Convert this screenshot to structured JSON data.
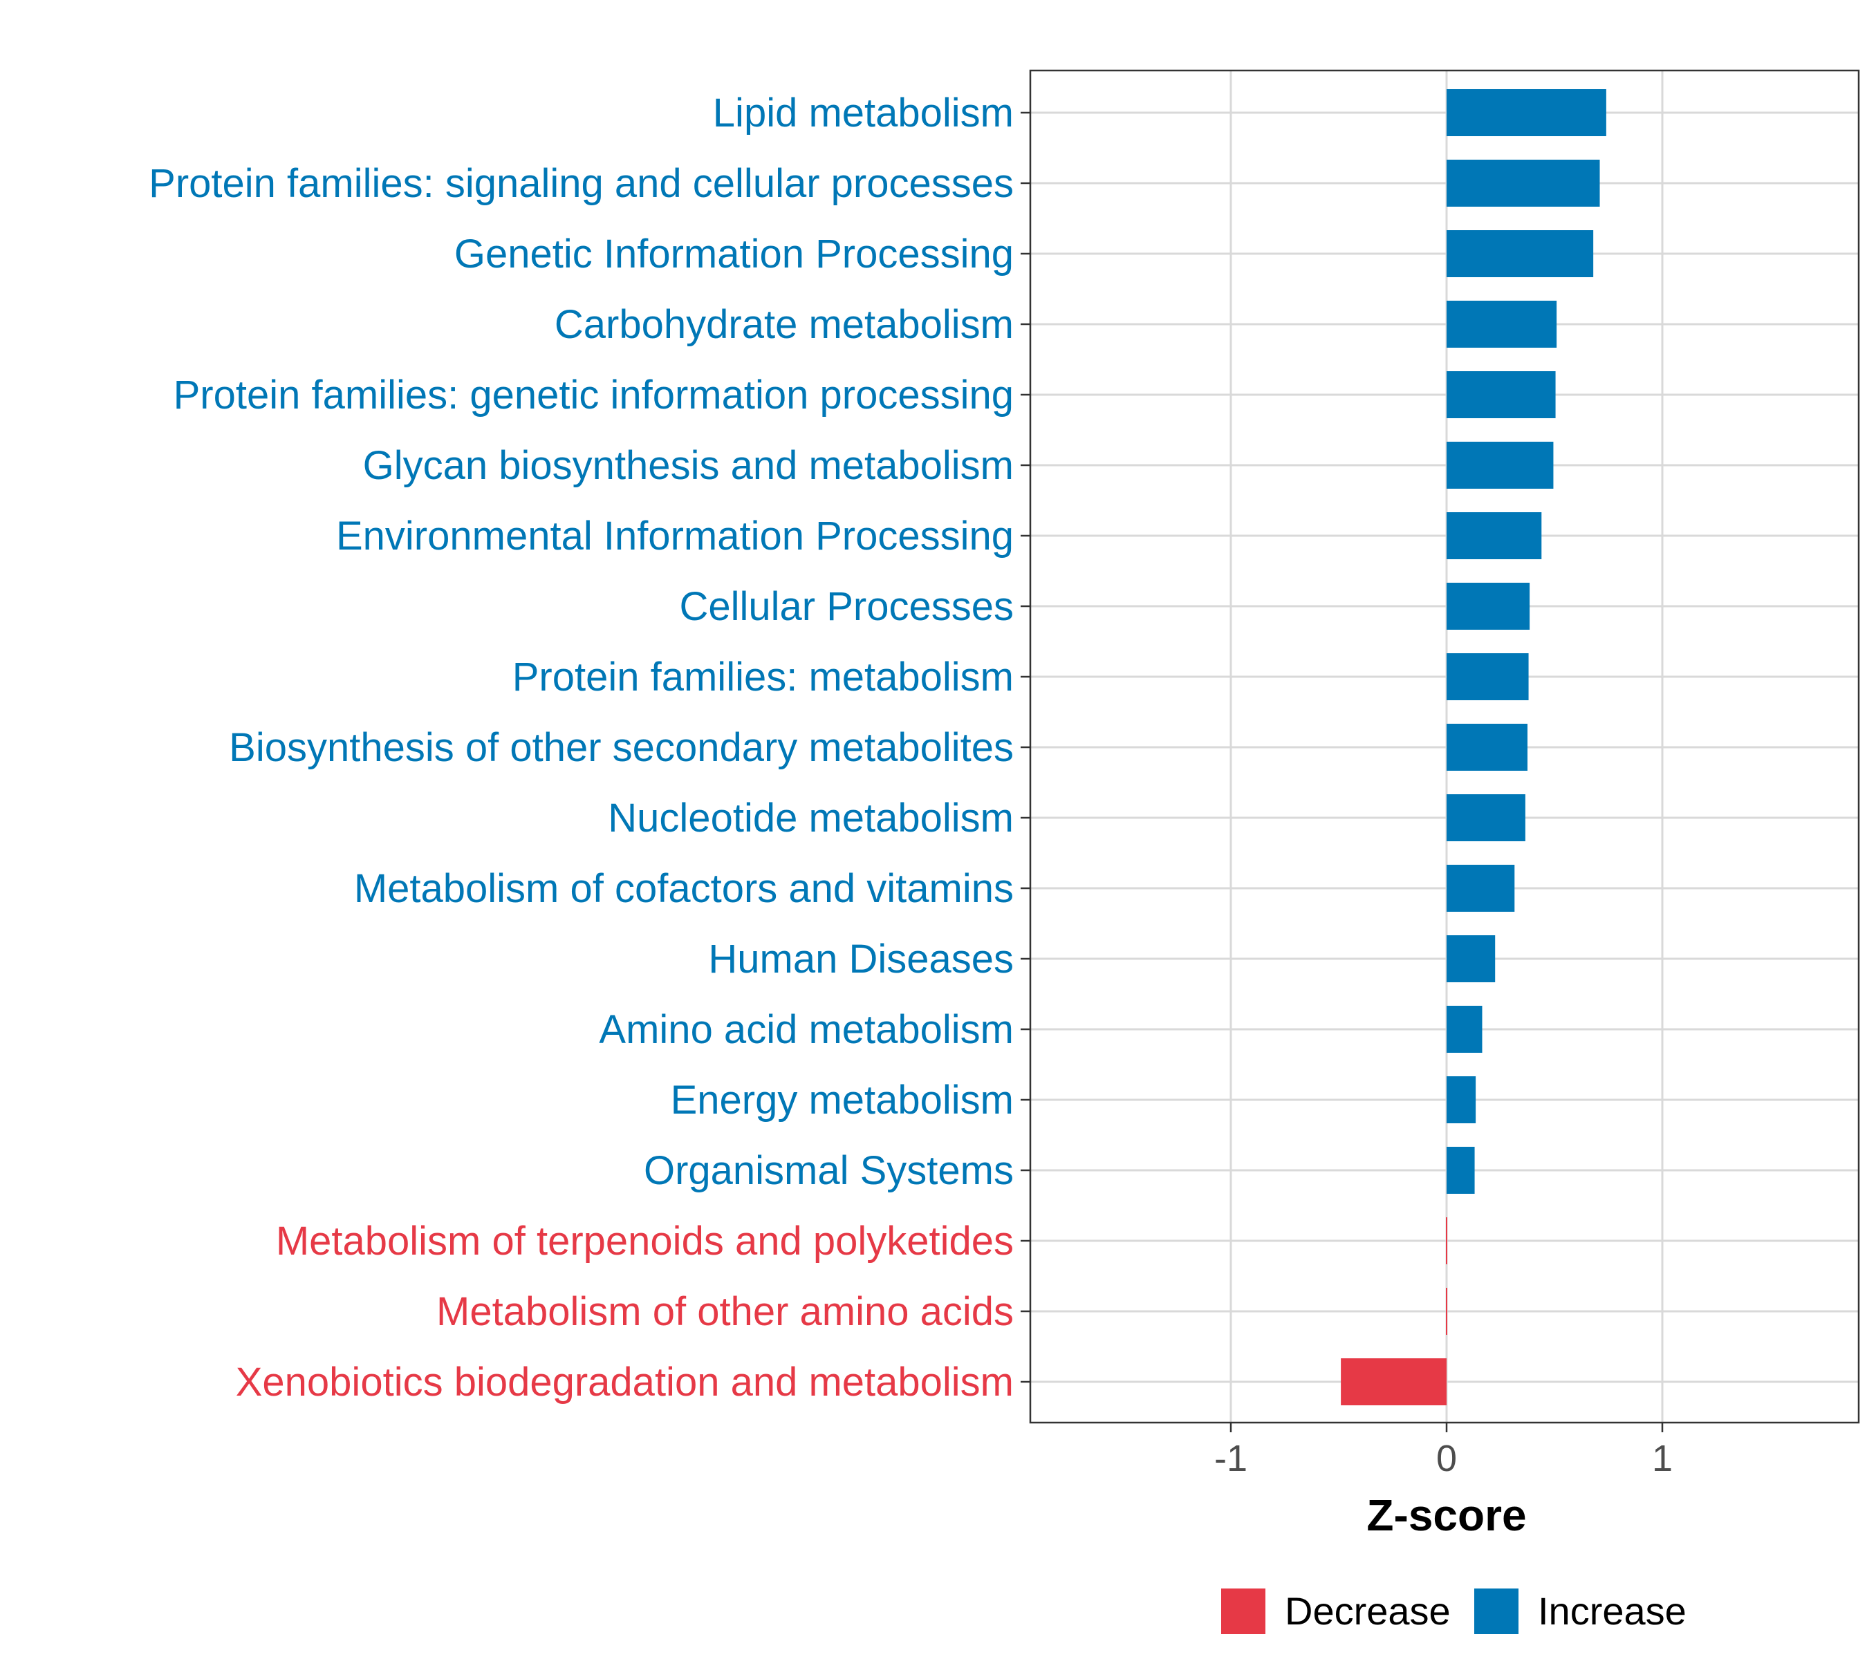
{
  "chart_data": {
    "type": "bar",
    "orientation": "horizontal",
    "title": "",
    "xlabel": "Z-score",
    "ylabel": "",
    "xlim": [
      -1.9,
      1.9
    ],
    "xticks": [
      -1,
      0,
      1
    ],
    "xtick_labels": [
      "-1",
      "0",
      "1"
    ],
    "grid": true,
    "legend_position": "bottom",
    "legend": [
      {
        "name": "Decrease",
        "color": "#e63946"
      },
      {
        "name": "Increase",
        "color": "#0077b6"
      }
    ],
    "categories": [
      "Lipid metabolism",
      "Protein families: signaling and cellular processes",
      "Genetic Information Processing",
      "Carbohydrate metabolism",
      "Protein families: genetic information processing",
      "Glycan biosynthesis and metabolism",
      "Environmental Information Processing",
      "Cellular Processes",
      "Protein families: metabolism",
      "Biosynthesis of other secondary metabolites",
      "Nucleotide metabolism",
      "Metabolism of cofactors and vitamins",
      "Human Diseases",
      "Amino acid metabolism",
      "Energy metabolism",
      "Organismal Systems",
      "Metabolism of terpenoids and polyketides",
      "Metabolism of other amino acids",
      "Xenobiotics biodegradation and metabolism"
    ],
    "values": [
      0.74,
      0.71,
      0.68,
      0.51,
      0.505,
      0.495,
      0.44,
      0.385,
      0.38,
      0.375,
      0.365,
      0.315,
      0.225,
      0.165,
      0.135,
      0.13,
      -0.003,
      -0.006,
      -0.49
    ],
    "groups": [
      "Increase",
      "Increase",
      "Increase",
      "Increase",
      "Increase",
      "Increase",
      "Increase",
      "Increase",
      "Increase",
      "Increase",
      "Increase",
      "Increase",
      "Increase",
      "Increase",
      "Increase",
      "Increase",
      "Decrease",
      "Decrease",
      "Decrease"
    ]
  }
}
